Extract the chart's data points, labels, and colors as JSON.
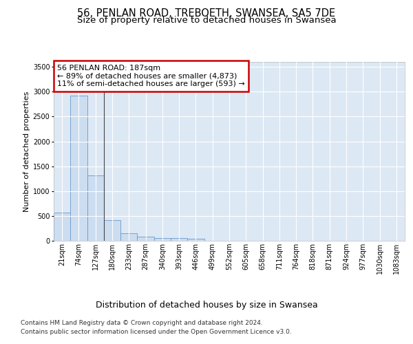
{
  "title": "56, PENLAN ROAD, TREBOETH, SWANSEA, SA5 7DE",
  "subtitle": "Size of property relative to detached houses in Swansea",
  "xlabel": "Distribution of detached houses by size in Swansea",
  "ylabel": "Number of detached properties",
  "categories": [
    "21sqm",
    "74sqm",
    "127sqm",
    "180sqm",
    "233sqm",
    "287sqm",
    "340sqm",
    "393sqm",
    "446sqm",
    "499sqm",
    "552sqm",
    "605sqm",
    "658sqm",
    "711sqm",
    "764sqm",
    "818sqm",
    "871sqm",
    "924sqm",
    "977sqm",
    "1030sqm",
    "1083sqm"
  ],
  "bar_heights": [
    570,
    2920,
    1320,
    410,
    155,
    80,
    55,
    50,
    45,
    0,
    0,
    0,
    0,
    0,
    0,
    0,
    0,
    0,
    0,
    0,
    0
  ],
  "bar_color": "#ccddf0",
  "bar_edge_color": "#6699cc",
  "annotation_line1": "56 PENLAN ROAD: 187sqm",
  "annotation_line2": "← 89% of detached houses are smaller (4,873)",
  "annotation_line3": "11% of semi-detached houses are larger (593) →",
  "annotation_box_color": "white",
  "annotation_box_edge_color": "#cc0000",
  "vline_index": 2,
  "ylim": [
    0,
    3600
  ],
  "yticks": [
    0,
    500,
    1000,
    1500,
    2000,
    2500,
    3000,
    3500
  ],
  "background_color": "#dde8f5",
  "grid_color": "white",
  "footer_line1": "Contains HM Land Registry data © Crown copyright and database right 2024.",
  "footer_line2": "Contains public sector information licensed under the Open Government Licence v3.0.",
  "title_fontsize": 10.5,
  "subtitle_fontsize": 9.5,
  "xlabel_fontsize": 9,
  "ylabel_fontsize": 8,
  "tick_fontsize": 7,
  "annotation_fontsize": 8,
  "footer_fontsize": 6.5
}
